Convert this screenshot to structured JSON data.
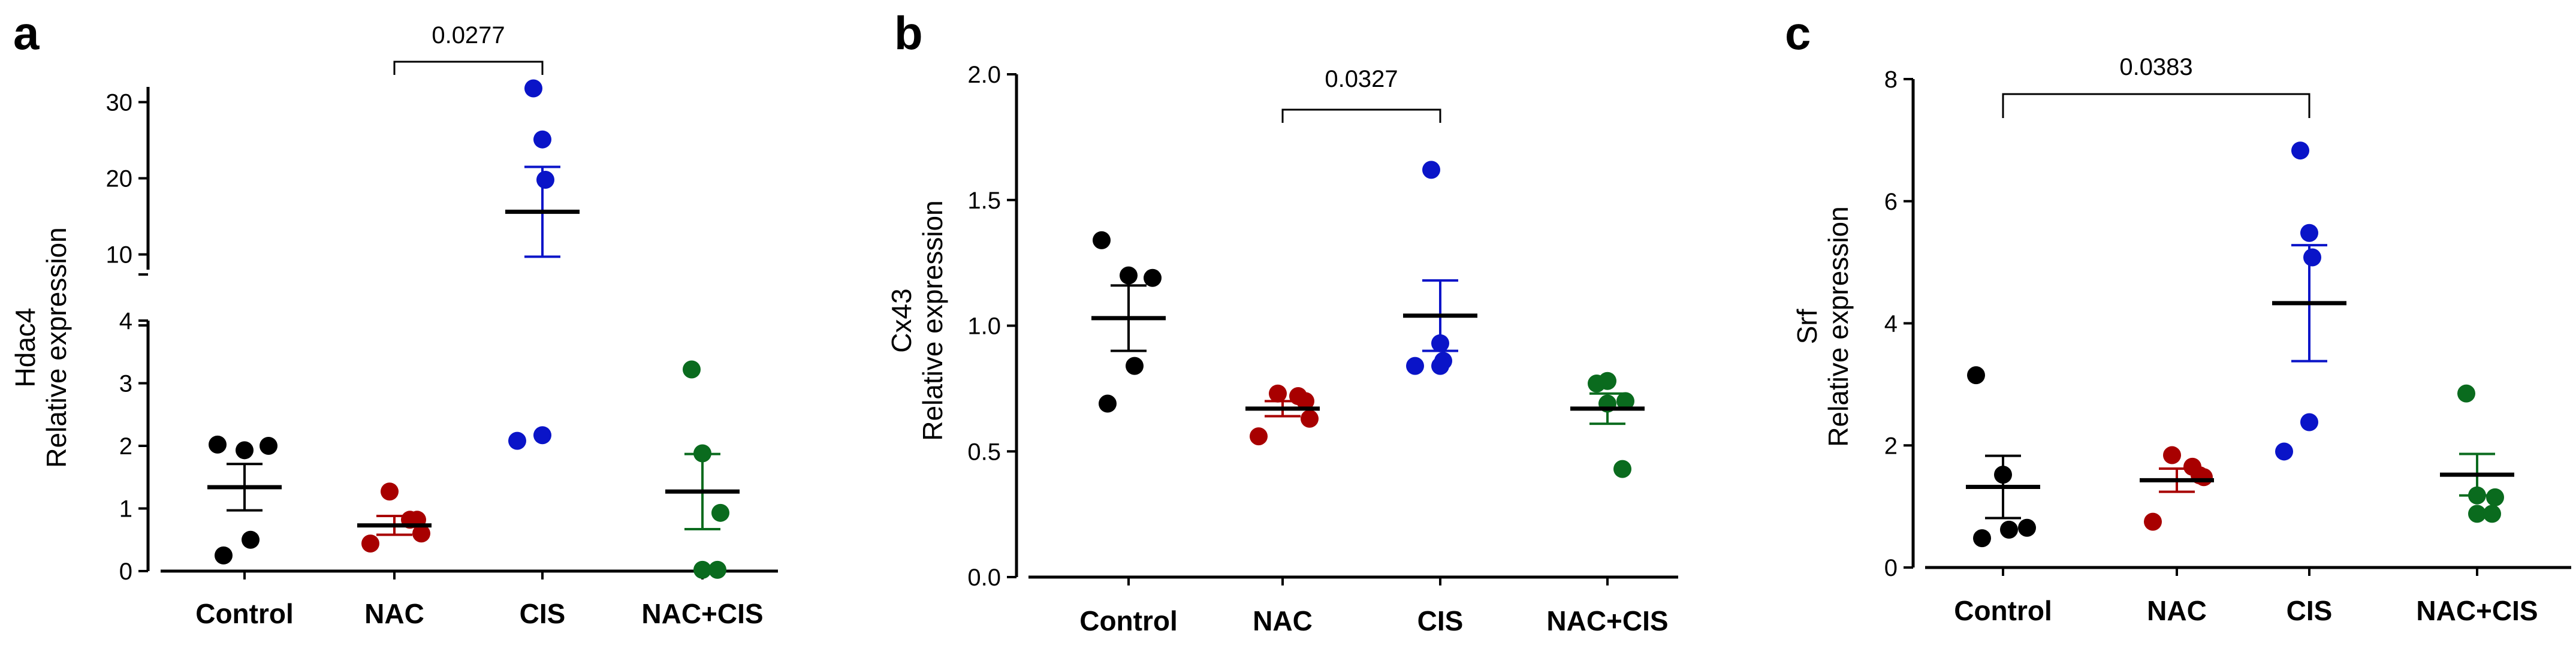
{
  "chart_data": [
    {
      "panel": "a",
      "type": "scatter",
      "gene": "Hdac4",
      "ylabel": "Relative expression",
      "categories": [
        "Control",
        "NAC",
        "CIS",
        "NAC+CIS"
      ],
      "colors": [
        "#000000",
        "#a80000",
        "#0a14c8",
        "#0a6b1e"
      ],
      "broken_axis": true,
      "lower_range": [
        0,
        4
      ],
      "upper_range": [
        8,
        32
      ],
      "lower_ticks": [
        "0",
        "1",
        "2",
        "3",
        "4"
      ],
      "upper_ticks": [
        "10",
        "20",
        "30"
      ],
      "points": [
        [
          2.02,
          1.93,
          2.0,
          0.5,
          0.25
        ],
        [
          1.27,
          0.82,
          0.82,
          0.6,
          0.44
        ],
        [
          31.8,
          25.1,
          19.8,
          2.17,
          2.08
        ],
        [
          3.22,
          1.88,
          0.93,
          0.02,
          0.02
        ]
      ],
      "mean": [
        1.34,
        0.73,
        15.6,
        1.27
      ],
      "sem": [
        0.37,
        0.15,
        5.9,
        0.6
      ],
      "comparison": {
        "from": "NAC",
        "to": "CIS",
        "p": "0.0277"
      }
    },
    {
      "panel": "b",
      "type": "scatter",
      "gene": "Cx43",
      "ylabel": "Relative expression",
      "categories": [
        "Control",
        "NAC",
        "CIS",
        "NAC+CIS"
      ],
      "colors": [
        "#000000",
        "#a80000",
        "#0a14c8",
        "#0a6b1e"
      ],
      "ylim": [
        0,
        2.0
      ],
      "ticks": [
        "0.0",
        "0.5",
        "1.0",
        "1.5",
        "2.0"
      ],
      "points": [
        [
          1.34,
          1.2,
          1.19,
          0.84,
          0.69
        ],
        [
          0.73,
          0.72,
          0.7,
          0.63,
          0.56
        ],
        [
          1.62,
          0.93,
          0.86,
          0.84,
          0.84
        ],
        [
          0.77,
          0.78,
          0.7,
          0.69,
          0.43
        ]
      ],
      "mean": [
        1.03,
        0.67,
        1.04,
        0.67
      ],
      "sem": [
        0.13,
        0.03,
        0.14,
        0.06
      ],
      "comparison": {
        "from": "NAC",
        "to": "CIS",
        "p": "0.0327"
      }
    },
    {
      "panel": "c",
      "type": "scatter",
      "gene": "Srf",
      "ylabel": "Relative expression",
      "categories": [
        "Control",
        "NAC",
        "CIS",
        "NAC+CIS"
      ],
      "colors": [
        "#000000",
        "#a80000",
        "#0a14c8",
        "#0a6b1e"
      ],
      "ylim": [
        0,
        8
      ],
      "ticks": [
        "0",
        "2",
        "4",
        "6",
        "8"
      ],
      "points": [
        [
          3.15,
          1.52,
          0.65,
          0.62,
          0.48
        ],
        [
          1.84,
          1.65,
          1.51,
          1.48,
          0.75
        ],
        [
          6.83,
          5.48,
          5.08,
          2.38,
          1.9
        ],
        [
          2.85,
          1.18,
          1.15,
          0.88,
          0.88
        ]
      ],
      "mean": [
        1.32,
        1.43,
        4.33,
        1.52
      ],
      "sem": [
        0.51,
        0.19,
        0.95,
        0.34
      ],
      "comparison": {
        "from": "Control",
        "to": "CIS",
        "p": "0.0383"
      }
    }
  ]
}
